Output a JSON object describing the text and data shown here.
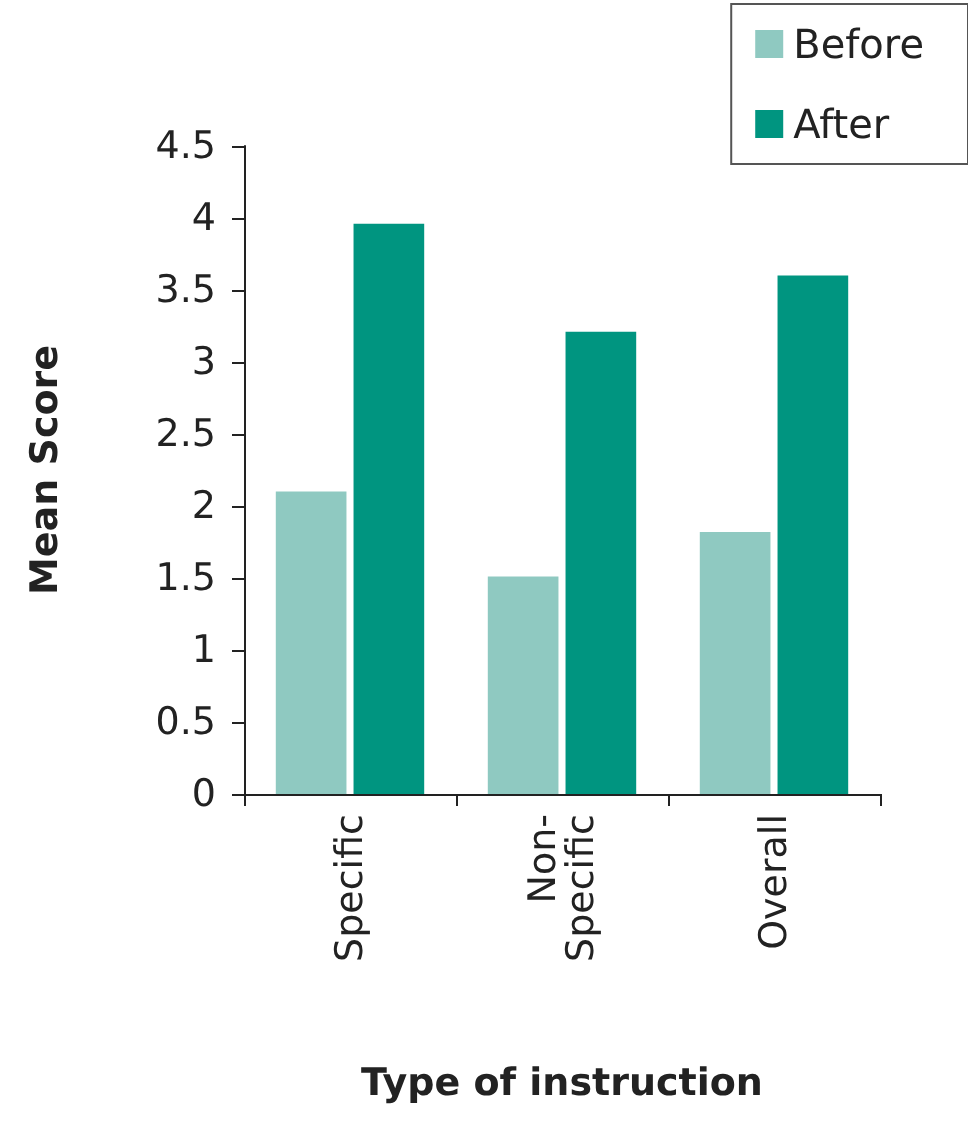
{
  "chart_data": {
    "type": "bar",
    "xlabel": "Type of instruction",
    "ylabel": "Mean Score",
    "categories": [
      "Specific",
      "Non-Specific",
      "Overall"
    ],
    "series": [
      {
        "name": "Before",
        "color": "#8fc9c1",
        "values": [
          2.1,
          1.51,
          1.82
        ]
      },
      {
        "name": "After",
        "color": "#009580",
        "values": [
          3.96,
          3.21,
          3.6
        ]
      }
    ],
    "ylim": [
      0,
      4.5
    ],
    "yticks": [
      0,
      0.5,
      1,
      1.5,
      2,
      2.5,
      3,
      3.5,
      4,
      4.5
    ],
    "legend": "top right"
  }
}
